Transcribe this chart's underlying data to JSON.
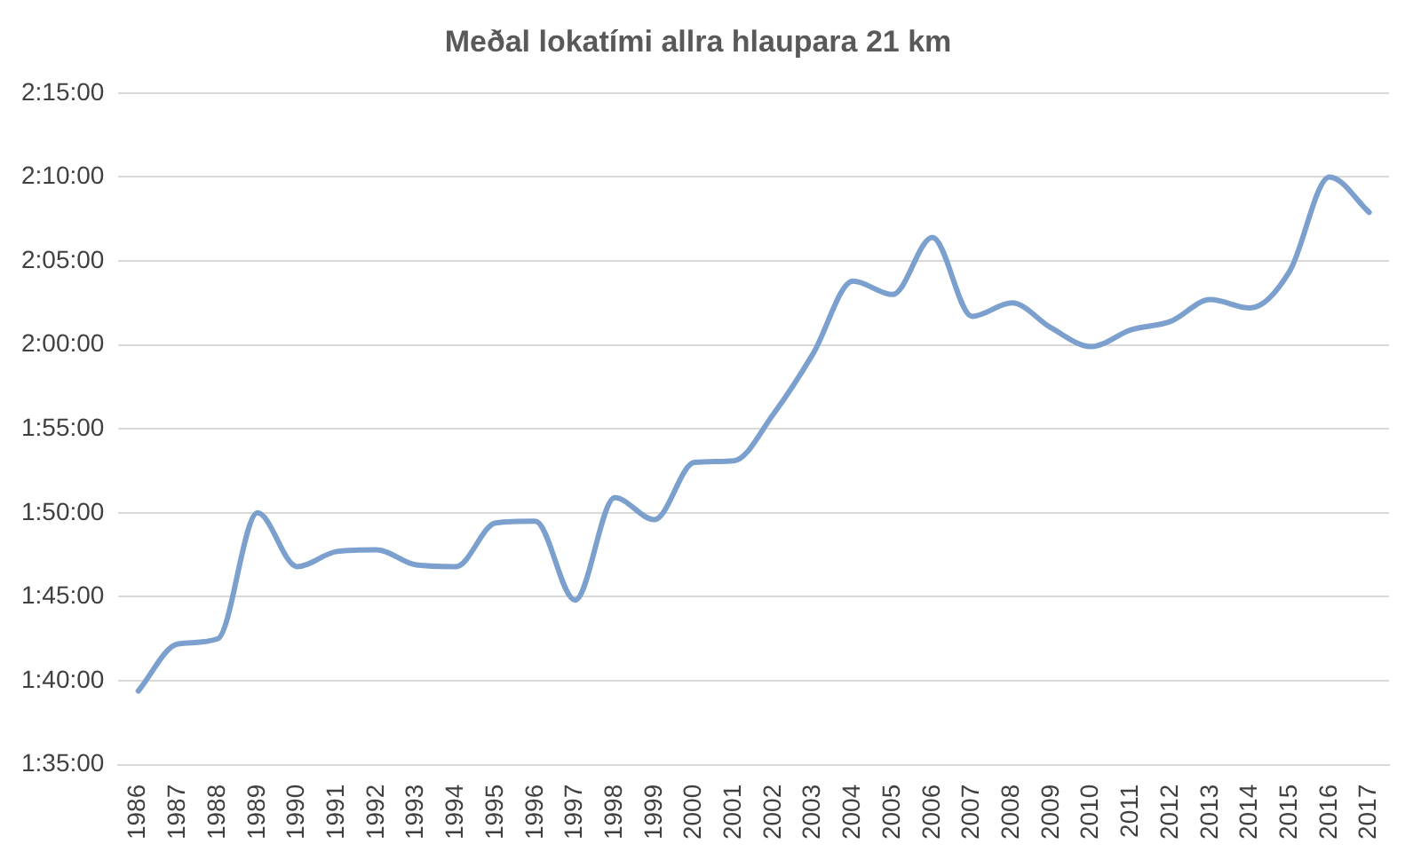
{
  "chart_data": {
    "type": "line",
    "title": "Meðal lokatími allra hlaupara 21 km",
    "categories": [
      "1986",
      "1987",
      "1988",
      "1989",
      "1990",
      "1991",
      "1992",
      "1993",
      "1994",
      "1995",
      "1996",
      "1997",
      "1998",
      "1999",
      "2000",
      "2001",
      "2002",
      "2003",
      "2004",
      "2005",
      "2006",
      "2007",
      "2008",
      "2009",
      "2010",
      "2011",
      "2012",
      "2013",
      "2014",
      "2015",
      "2016",
      "2017"
    ],
    "series": [
      {
        "color": "#7ba0cd",
        "values": [
          99.4,
          102.2,
          102.5,
          110,
          106.8,
          107.7,
          107.8,
          106.9,
          106.8,
          109.4,
          109.5,
          104.8,
          110.9,
          109.6,
          113,
          113.1,
          115.9,
          119.5,
          123.8,
          123,
          126.4,
          121.7,
          122.5,
          121,
          119.9,
          120.9,
          121.4,
          122.7,
          122.2,
          124.4,
          130,
          127.9
        ]
      }
    ],
    "ylim": [
      95,
      135
    ],
    "yticks": [
      {
        "value": 95,
        "label": "1:35:00"
      },
      {
        "value": 100,
        "label": "1:40:00"
      },
      {
        "value": 105,
        "label": "1:45:00"
      },
      {
        "value": 110,
        "label": "1:50:00"
      },
      {
        "value": 115,
        "label": "1:55:00"
      },
      {
        "value": 120,
        "label": "2:00:00"
      },
      {
        "value": 125,
        "label": "2:05:00"
      },
      {
        "value": 130,
        "label": "2:10:00"
      },
      {
        "value": 135,
        "label": "2:15:00"
      }
    ],
    "grid": "y",
    "legend": false,
    "marker": "none",
    "line_style": "solid"
  }
}
